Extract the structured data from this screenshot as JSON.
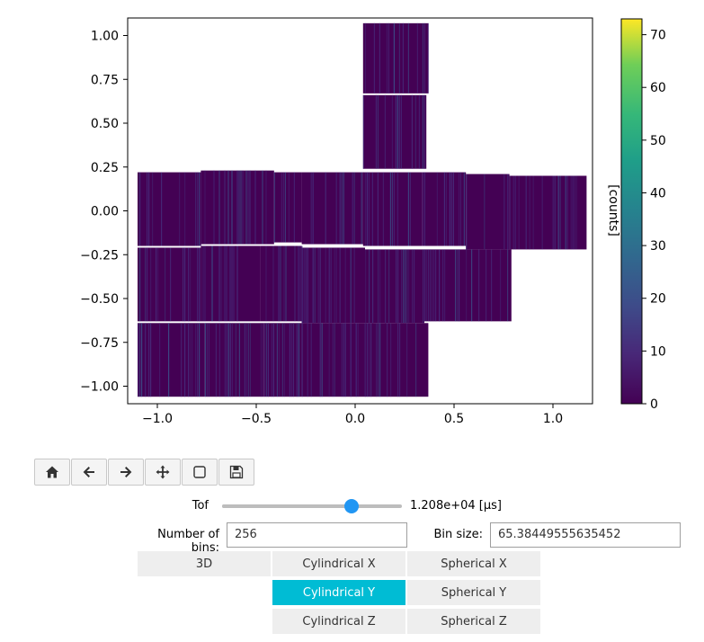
{
  "chart_data": {
    "type": "heatmap",
    "title": "",
    "xlabel": "",
    "ylabel": "",
    "xlim": [
      -1.15,
      1.2
    ],
    "ylim": [
      -1.1,
      1.1
    ],
    "xticks": [
      -1.0,
      -0.5,
      0.0,
      0.5,
      1.0
    ],
    "xtick_labels": [
      "−1.0",
      "−0.5",
      "0.0",
      "0.5",
      "1.0"
    ],
    "yticks": [
      1.0,
      0.75,
      0.5,
      0.25,
      0.0,
      -0.25,
      -0.5,
      -0.75,
      -1.0
    ],
    "ytick_labels": [
      "1.00",
      "0.75",
      "0.50",
      "0.25",
      "0.00",
      "−0.25",
      "−0.50",
      "−0.75",
      "−1.00"
    ],
    "colorbar": {
      "label": "[counts]",
      "colormap": "viridis",
      "range": [
        0,
        73
      ],
      "ticks": [
        0,
        10,
        20,
        30,
        40,
        50,
        60,
        70
      ],
      "tick_labels": [
        "0",
        "10",
        "20",
        "30",
        "40",
        "50",
        "60",
        "70"
      ]
    },
    "detector_panels": [
      {
        "x": [
          0.04,
          0.37
        ],
        "y": [
          0.67,
          1.07
        ]
      },
      {
        "x": [
          0.04,
          0.36
        ],
        "y": [
          0.24,
          0.66
        ]
      },
      {
        "x": [
          -1.1,
          -0.78
        ],
        "y": [
          -0.2,
          0.22
        ]
      },
      {
        "x": [
          -0.78,
          -0.41
        ],
        "y": [
          -0.19,
          0.23
        ]
      },
      {
        "x": [
          -0.41,
          -0.27
        ],
        "y": [
          -0.18,
          0.22
        ]
      },
      {
        "x": [
          -0.27,
          0.04
        ],
        "y": [
          -0.19,
          0.22
        ]
      },
      {
        "x": [
          0.04,
          0.34
        ],
        "y": [
          -0.2,
          0.22
        ]
      },
      {
        "x": [
          0.34,
          0.56
        ],
        "y": [
          -0.2,
          0.22
        ]
      },
      {
        "x": [
          0.56,
          0.78
        ],
        "y": [
          -0.22,
          0.21
        ]
      },
      {
        "x": [
          0.78,
          1.17
        ],
        "y": [
          -0.22,
          0.2
        ]
      },
      {
        "x": [
          -1.1,
          -0.78
        ],
        "y": [
          -0.63,
          -0.21
        ]
      },
      {
        "x": [
          -0.78,
          -0.48
        ],
        "y": [
          -0.63,
          -0.2
        ]
      },
      {
        "x": [
          -0.48,
          -0.27
        ],
        "y": [
          -0.63,
          -0.2
        ]
      },
      {
        "x": [
          -0.27,
          0.05
        ],
        "y": [
          -0.64,
          -0.21
        ]
      },
      {
        "x": [
          0.05,
          0.35
        ],
        "y": [
          -0.64,
          -0.22
        ]
      },
      {
        "x": [
          0.35,
          0.79
        ],
        "y": [
          -0.63,
          -0.22
        ]
      },
      {
        "x": [
          -1.1,
          -0.76
        ],
        "y": [
          -1.06,
          -0.64
        ]
      },
      {
        "x": [
          -0.76,
          -0.46
        ],
        "y": [
          -1.06,
          -0.64
        ]
      },
      {
        "x": [
          -0.46,
          -0.27
        ],
        "y": [
          -1.06,
          -0.64
        ]
      },
      {
        "x": [
          -0.27,
          0.05
        ],
        "y": [
          -1.06,
          -0.64
        ]
      },
      {
        "x": [
          0.05,
          0.37
        ],
        "y": [
          -1.06,
          -0.64
        ]
      }
    ]
  },
  "colors": {
    "panel_base": "#440154",
    "stripe_low": "#46307e",
    "stripe_mid": "#3b528b",
    "accent": "#2196f3",
    "active_button": "#00bcd4"
  },
  "toolbar": {
    "icons": [
      "home-icon",
      "back-arrow-icon",
      "forward-arrow-icon",
      "pan-icon",
      "zoom-rectangle-icon",
      "save-icon"
    ]
  },
  "slider": {
    "label": "Tof",
    "value_fraction": 0.72,
    "value_text": "1.208e+04 [µs]"
  },
  "bins": {
    "label": "Number of bins:",
    "value": "256"
  },
  "bin_size": {
    "label": "Bin size:",
    "value": "65.38449555635452"
  },
  "view_buttons": {
    "b3d": "3D",
    "cyl_x": "Cylindrical X",
    "cyl_y": "Cylindrical Y",
    "cyl_z": "Cylindrical Z",
    "sph_x": "Spherical X",
    "sph_y": "Spherical Y",
    "sph_z": "Spherical Z"
  }
}
